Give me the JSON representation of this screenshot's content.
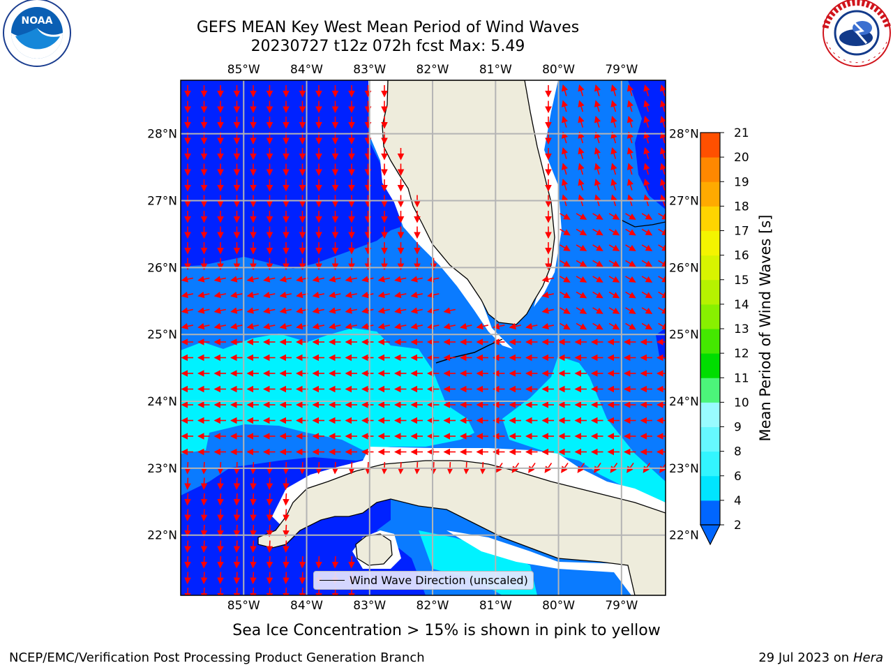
{
  "header": {
    "title_line1": "GEFS MEAN Key West Mean Period of Wind Waves",
    "title_line2": "20230727 t12z 072h fcst   Max: 5.49"
  },
  "logos": {
    "left": {
      "name": "NOAA",
      "ring_text": "NATIONAL OCEANIC AND ATMOSPHERIC ADMINISTRATION · U.S. DEPARTMENT OF COMMERCE"
    },
    "right": {
      "name": "NATIONAL WEATHER SERVICE"
    }
  },
  "map": {
    "lon_labels": [
      "85°W",
      "84°W",
      "83°W",
      "82°W",
      "81°W",
      "80°W",
      "79°W"
    ],
    "lat_labels": [
      "28°N",
      "27°N",
      "26°N",
      "25°N",
      "24°N",
      "23°N",
      "22°N"
    ],
    "lon_extent": [
      -86.0,
      -78.3
    ],
    "lat_extent": [
      21.1,
      28.8
    ],
    "legend_label": "Wind Wave Direction (unscaled)",
    "arrow_color": "#ff0000",
    "land_color": "#eeecdc",
    "fill_colors": {
      "band_2_4": "#0022ff",
      "band_4_6": "#0a7bff",
      "band_6_8": "#00f2ff"
    }
  },
  "colorbar": {
    "label": "Mean Period of Wind Waves [s]",
    "tick_labels": [
      "2",
      "4",
      "6",
      "8",
      "9",
      "10",
      "11",
      "12",
      "13",
      "14",
      "15",
      "16",
      "17",
      "18",
      "19",
      "20",
      "21"
    ],
    "colors": [
      "#0066ff",
      "#00e5ff",
      "#33f5ff",
      "#66f8ff",
      "#99fbff",
      "#4cf57a",
      "#00dd00",
      "#44e800",
      "#88f000",
      "#b6f200",
      "#d8f400",
      "#f4f400",
      "#ffd400",
      "#ffaa00",
      "#ff8800",
      "#ff5000",
      "#ff2a00",
      "#ff0000"
    ]
  },
  "note": "Sea Ice Concentration > 15% is shown in pink to yellow",
  "footer": {
    "left": "NCEP/EMC/Verification Post Processing Product Generation Branch",
    "right_date": "29 Jul 2023 on ",
    "right_host": "Hera"
  }
}
